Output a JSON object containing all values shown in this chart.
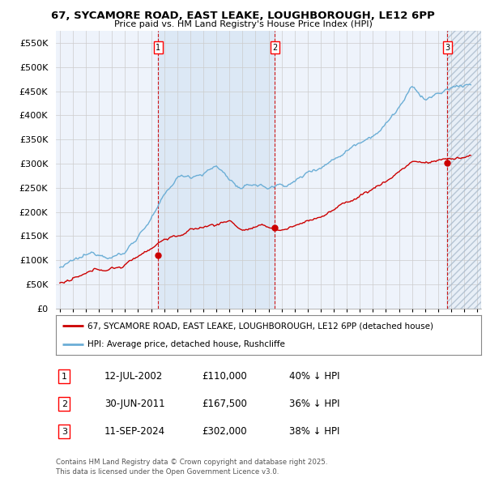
{
  "title1": "67, SYCAMORE ROAD, EAST LEAKE, LOUGHBOROUGH, LE12 6PP",
  "title2": "Price paid vs. HM Land Registry's House Price Index (HPI)",
  "hpi_color": "#6baed6",
  "price_color": "#cc0000",
  "dashed_color": "#cc0000",
  "background_color": "#eef3fb",
  "shade_color": "#dce8f5",
  "hatch_color": "#bbccdd",
  "purchases": [
    {
      "date_num": 2002.54,
      "price": 110000,
      "label": "1"
    },
    {
      "date_num": 2011.49,
      "price": 167500,
      "label": "2"
    },
    {
      "date_num": 2024.7,
      "price": 302000,
      "label": "3"
    }
  ],
  "purchase_info": [
    {
      "label": "1",
      "date": "12-JUL-2002",
      "price": "£110,000",
      "pct": "40% ↓ HPI"
    },
    {
      "label": "2",
      "date": "30-JUN-2011",
      "price": "£167,500",
      "pct": "36% ↓ HPI"
    },
    {
      "label": "3",
      "date": "11-SEP-2024",
      "price": "£302,000",
      "pct": "38% ↓ HPI"
    }
  ],
  "legend_line1": "67, SYCAMORE ROAD, EAST LEAKE, LOUGHBOROUGH, LE12 6PP (detached house)",
  "legend_line2": "HPI: Average price, detached house, Rushcliffe",
  "footer": "Contains HM Land Registry data © Crown copyright and database right 2025.\nThis data is licensed under the Open Government Licence v3.0.",
  "ylim": [
    0,
    575000
  ],
  "xlim_start": 1994.7,
  "xlim_end": 2027.3,
  "yticks": [
    0,
    50000,
    100000,
    150000,
    200000,
    250000,
    300000,
    350000,
    400000,
    450000,
    500000,
    550000
  ],
  "ytick_labels": [
    "£0",
    "£50K",
    "£100K",
    "£150K",
    "£200K",
    "£250K",
    "£300K",
    "£350K",
    "£400K",
    "£450K",
    "£500K",
    "£550K"
  ],
  "xticks": [
    1995,
    1996,
    1997,
    1998,
    1999,
    2000,
    2001,
    2002,
    2003,
    2004,
    2005,
    2006,
    2007,
    2008,
    2009,
    2010,
    2011,
    2012,
    2013,
    2014,
    2015,
    2016,
    2017,
    2018,
    2019,
    2020,
    2021,
    2022,
    2023,
    2024,
    2025,
    2026,
    2027
  ]
}
